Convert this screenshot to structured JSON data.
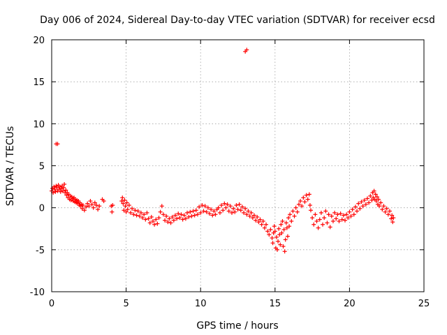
{
  "chart_data": {
    "type": "scatter",
    "title": "Day 006 of 2024, Sidereal Day-to-day VTEC variation (SDTVAR) for receiver ecsd",
    "xlabel": "GPS time / hours",
    "ylabel": "SDTVAR / TECUs",
    "xlim": [
      0,
      25
    ],
    "ylim": [
      -10,
      20
    ],
    "xticks": [
      0,
      5,
      10,
      15,
      20,
      25
    ],
    "yticks": [
      -10,
      -5,
      0,
      5,
      10,
      15,
      20
    ],
    "grid": true,
    "marker": "+",
    "color": "#ff0000",
    "series": [
      {
        "name": "SDTVAR",
        "points": [
          [
            0.0,
            2.0
          ],
          [
            0.05,
            2.3
          ],
          [
            0.1,
            1.8
          ],
          [
            0.15,
            2.5
          ],
          [
            0.2,
            2.2
          ],
          [
            0.25,
            1.9
          ],
          [
            0.3,
            2.6
          ],
          [
            0.35,
            2.4
          ],
          [
            0.4,
            2.0
          ],
          [
            0.45,
            2.7
          ],
          [
            0.5,
            2.2
          ],
          [
            0.55,
            2.5
          ],
          [
            0.6,
            1.9
          ],
          [
            0.65,
            2.3
          ],
          [
            0.7,
            2.6
          ],
          [
            0.75,
            2.0
          ],
          [
            0.8,
            2.4
          ],
          [
            0.85,
            2.8
          ],
          [
            0.9,
            1.8
          ],
          [
            0.95,
            2.1
          ],
          [
            1.0,
            1.5
          ],
          [
            1.05,
            1.8
          ],
          [
            1.1,
            1.2
          ],
          [
            1.15,
            1.6
          ],
          [
            1.2,
            1.0
          ],
          [
            1.25,
            1.4
          ],
          [
            1.3,
            0.9
          ],
          [
            1.35,
            1.3
          ],
          [
            1.4,
            1.1
          ],
          [
            1.45,
            0.8
          ],
          [
            1.5,
            1.2
          ],
          [
            1.55,
            0.7
          ],
          [
            1.6,
            1.0
          ],
          [
            1.65,
            0.6
          ],
          [
            1.7,
            0.9
          ],
          [
            1.75,
            0.5
          ],
          [
            1.8,
            0.8
          ],
          [
            1.85,
            0.3
          ],
          [
            1.9,
            0.6
          ],
          [
            1.95,
            0.2
          ],
          [
            2.0,
            0.4
          ],
          [
            2.05,
            -0.1
          ],
          [
            2.1,
            0.3
          ],
          [
            2.2,
            -0.3
          ],
          [
            2.3,
            0.1
          ],
          [
            2.4,
            0.5
          ],
          [
            2.5,
            0.2
          ],
          [
            2.6,
            0.8
          ],
          [
            2.7,
            0.4
          ],
          [
            2.8,
            0.0
          ],
          [
            2.9,
            0.6
          ],
          [
            3.0,
            0.3
          ],
          [
            3.1,
            -0.2
          ],
          [
            3.2,
            0.2
          ],
          [
            3.4,
            1.0
          ],
          [
            3.5,
            0.8
          ],
          [
            4.0,
            0.2
          ],
          [
            4.05,
            -0.5
          ],
          [
            4.1,
            0.3
          ],
          [
            0.3,
            7.6
          ],
          [
            0.4,
            7.6
          ],
          [
            13.0,
            18.6
          ],
          [
            13.1,
            18.8
          ],
          [
            4.7,
            0.8
          ],
          [
            4.75,
            1.2
          ],
          [
            4.8,
            0.5
          ],
          [
            4.85,
            -0.3
          ],
          [
            4.9,
            0.9
          ],
          [
            4.95,
            0.2
          ],
          [
            5.0,
            -0.5
          ],
          [
            5.05,
            0.6
          ],
          [
            5.1,
            -0.2
          ],
          [
            5.2,
            0.3
          ],
          [
            5.3,
            -0.6
          ],
          [
            5.4,
            -0.1
          ],
          [
            5.5,
            -0.8
          ],
          [
            5.6,
            -0.3
          ],
          [
            5.7,
            -0.9
          ],
          [
            5.8,
            -0.4
          ],
          [
            5.9,
            -1.0
          ],
          [
            6.0,
            -0.6
          ],
          [
            6.1,
            -1.2
          ],
          [
            6.2,
            -0.8
          ],
          [
            6.3,
            -1.4
          ],
          [
            6.4,
            -0.6
          ],
          [
            6.5,
            -1.3
          ],
          [
            6.6,
            -1.8
          ],
          [
            6.7,
            -1.1
          ],
          [
            6.8,
            -1.6
          ],
          [
            6.9,
            -2.0
          ],
          [
            7.0,
            -1.4
          ],
          [
            7.1,
            -1.9
          ],
          [
            7.2,
            -1.2
          ],
          [
            7.3,
            -0.5
          ],
          [
            7.4,
            0.2
          ],
          [
            7.5,
            -0.8
          ],
          [
            7.6,
            -1.5
          ],
          [
            7.7,
            -1.0
          ],
          [
            7.8,
            -1.7
          ],
          [
            7.9,
            -1.3
          ],
          [
            8.0,
            -1.8
          ],
          [
            8.1,
            -1.1
          ],
          [
            8.2,
            -1.5
          ],
          [
            8.3,
            -0.9
          ],
          [
            8.4,
            -1.3
          ],
          [
            8.5,
            -0.7
          ],
          [
            8.6,
            -1.2
          ],
          [
            8.7,
            -0.8
          ],
          [
            8.8,
            -1.4
          ],
          [
            8.9,
            -0.9
          ],
          [
            9.0,
            -1.3
          ],
          [
            9.1,
            -0.6
          ],
          [
            9.2,
            -1.1
          ],
          [
            9.3,
            -0.5
          ],
          [
            9.4,
            -1.0
          ],
          [
            9.5,
            -0.4
          ],
          [
            9.6,
            -0.9
          ],
          [
            9.7,
            -0.3
          ],
          [
            9.8,
            -0.8
          ],
          [
            9.9,
            0.1
          ],
          [
            10.0,
            -0.6
          ],
          [
            10.1,
            0.3
          ],
          [
            10.2,
            -0.4
          ],
          [
            10.3,
            0.2
          ],
          [
            10.4,
            -0.5
          ],
          [
            10.5,
            0.0
          ],
          [
            10.6,
            -0.7
          ],
          [
            10.7,
            -0.2
          ],
          [
            10.8,
            -0.9
          ],
          [
            10.9,
            -0.4
          ],
          [
            11.0,
            -0.8
          ],
          [
            11.1,
            -0.2
          ],
          [
            11.2,
            0.0
          ],
          [
            11.3,
            -0.6
          ],
          [
            11.4,
            0.3
          ],
          [
            11.5,
            -0.3
          ],
          [
            11.6,
            0.5
          ],
          [
            11.7,
            0.0
          ],
          [
            11.8,
            0.4
          ],
          [
            11.9,
            -0.4
          ],
          [
            12.0,
            0.2
          ],
          [
            12.1,
            -0.6
          ],
          [
            12.2,
            -0.1
          ],
          [
            12.3,
            -0.5
          ],
          [
            12.4,
            0.3
          ],
          [
            12.5,
            -0.2
          ],
          [
            12.6,
            0.4
          ],
          [
            12.7,
            -0.3
          ],
          [
            12.8,
            0.1
          ],
          [
            12.9,
            -0.6
          ],
          [
            13.0,
            -0.1
          ],
          [
            13.1,
            -0.8
          ],
          [
            13.2,
            -0.4
          ],
          [
            13.3,
            -1.0
          ],
          [
            13.4,
            -0.6
          ],
          [
            13.5,
            -1.2
          ],
          [
            13.6,
            -0.9
          ],
          [
            13.7,
            -1.5
          ],
          [
            13.8,
            -1.1
          ],
          [
            13.9,
            -1.7
          ],
          [
            14.0,
            -1.4
          ],
          [
            14.1,
            -2.0
          ],
          [
            14.2,
            -1.6
          ],
          [
            14.3,
            -2.4
          ],
          [
            14.4,
            -2.0
          ],
          [
            14.5,
            -2.8
          ],
          [
            14.6,
            -3.2
          ],
          [
            14.7,
            -2.6
          ],
          [
            14.8,
            -3.6
          ],
          [
            14.85,
            -4.2
          ],
          [
            14.9,
            -3.0
          ],
          [
            14.95,
            -2.2
          ],
          [
            15.0,
            -2.8
          ],
          [
            15.05,
            -4.8
          ],
          [
            15.1,
            -3.5
          ],
          [
            15.15,
            -5.0
          ],
          [
            15.2,
            -4.0
          ],
          [
            15.25,
            -2.5
          ],
          [
            15.3,
            -3.2
          ],
          [
            15.35,
            -4.4
          ],
          [
            15.4,
            -2.0
          ],
          [
            15.45,
            -3.0
          ],
          [
            15.5,
            -1.6
          ],
          [
            15.55,
            -4.6
          ],
          [
            15.6,
            -2.6
          ],
          [
            15.65,
            -5.2
          ],
          [
            15.7,
            -3.8
          ],
          [
            15.75,
            -1.8
          ],
          [
            15.8,
            -2.4
          ],
          [
            15.85,
            -3.4
          ],
          [
            15.9,
            -1.2
          ],
          [
            15.95,
            -2.2
          ],
          [
            16.0,
            -0.8
          ],
          [
            16.1,
            -1.6
          ],
          [
            16.2,
            -0.4
          ],
          [
            16.3,
            -1.0
          ],
          [
            16.4,
            0.0
          ],
          [
            16.5,
            -0.5
          ],
          [
            16.6,
            0.4
          ],
          [
            16.7,
            0.8
          ],
          [
            16.8,
            0.2
          ],
          [
            16.9,
            1.2
          ],
          [
            17.0,
            0.7
          ],
          [
            17.1,
            1.5
          ],
          [
            17.2,
            1.0
          ],
          [
            17.3,
            1.6
          ],
          [
            17.35,
            0.3
          ],
          [
            17.4,
            -0.3
          ],
          [
            17.5,
            -1.2
          ],
          [
            17.6,
            -2.0
          ],
          [
            17.7,
            -0.8
          ],
          [
            17.8,
            -1.6
          ],
          [
            17.9,
            -2.4
          ],
          [
            18.0,
            -1.4
          ],
          [
            18.1,
            -0.6
          ],
          [
            18.2,
            -2.0
          ],
          [
            18.3,
            -1.2
          ],
          [
            18.4,
            -0.4
          ],
          [
            18.5,
            -1.8
          ],
          [
            18.6,
            -0.8
          ],
          [
            18.7,
            -2.3
          ],
          [
            18.8,
            -1.0
          ],
          [
            18.9,
            -1.6
          ],
          [
            19.0,
            -0.6
          ],
          [
            19.1,
            -1.3
          ],
          [
            19.2,
            -0.8
          ],
          [
            19.3,
            -1.6
          ],
          [
            19.4,
            -0.7
          ],
          [
            19.5,
            -1.4
          ],
          [
            19.6,
            -0.9
          ],
          [
            19.7,
            -1.5
          ],
          [
            19.8,
            -0.8
          ],
          [
            19.9,
            -1.2
          ],
          [
            20.0,
            -0.5
          ],
          [
            20.1,
            -1.0
          ],
          [
            20.2,
            -0.2
          ],
          [
            20.3,
            -0.8
          ],
          [
            20.4,
            0.1
          ],
          [
            20.5,
            -0.4
          ],
          [
            20.6,
            0.5
          ],
          [
            20.7,
            -0.1
          ],
          [
            20.8,
            0.7
          ],
          [
            20.9,
            0.2
          ],
          [
            21.0,
            0.9
          ],
          [
            21.1,
            0.4
          ],
          [
            21.2,
            1.1
          ],
          [
            21.3,
            0.6
          ],
          [
            21.4,
            1.4
          ],
          [
            21.5,
            0.9
          ],
          [
            21.55,
            1.8
          ],
          [
            21.6,
            1.2
          ],
          [
            21.65,
            2.0
          ],
          [
            21.7,
            1.0
          ],
          [
            21.75,
            1.6
          ],
          [
            21.8,
            0.8
          ],
          [
            21.85,
            1.3
          ],
          [
            21.9,
            0.4
          ],
          [
            21.95,
            1.0
          ],
          [
            22.0,
            0.2
          ],
          [
            22.1,
            0.6
          ],
          [
            22.2,
            -0.2
          ],
          [
            22.3,
            0.2
          ],
          [
            22.4,
            -0.5
          ],
          [
            22.5,
            -0.1
          ],
          [
            22.6,
            -0.8
          ],
          [
            22.7,
            -0.4
          ],
          [
            22.8,
            -1.3
          ],
          [
            22.85,
            -0.9
          ],
          [
            22.9,
            -1.7
          ],
          [
            22.95,
            -1.2
          ]
        ]
      }
    ]
  }
}
